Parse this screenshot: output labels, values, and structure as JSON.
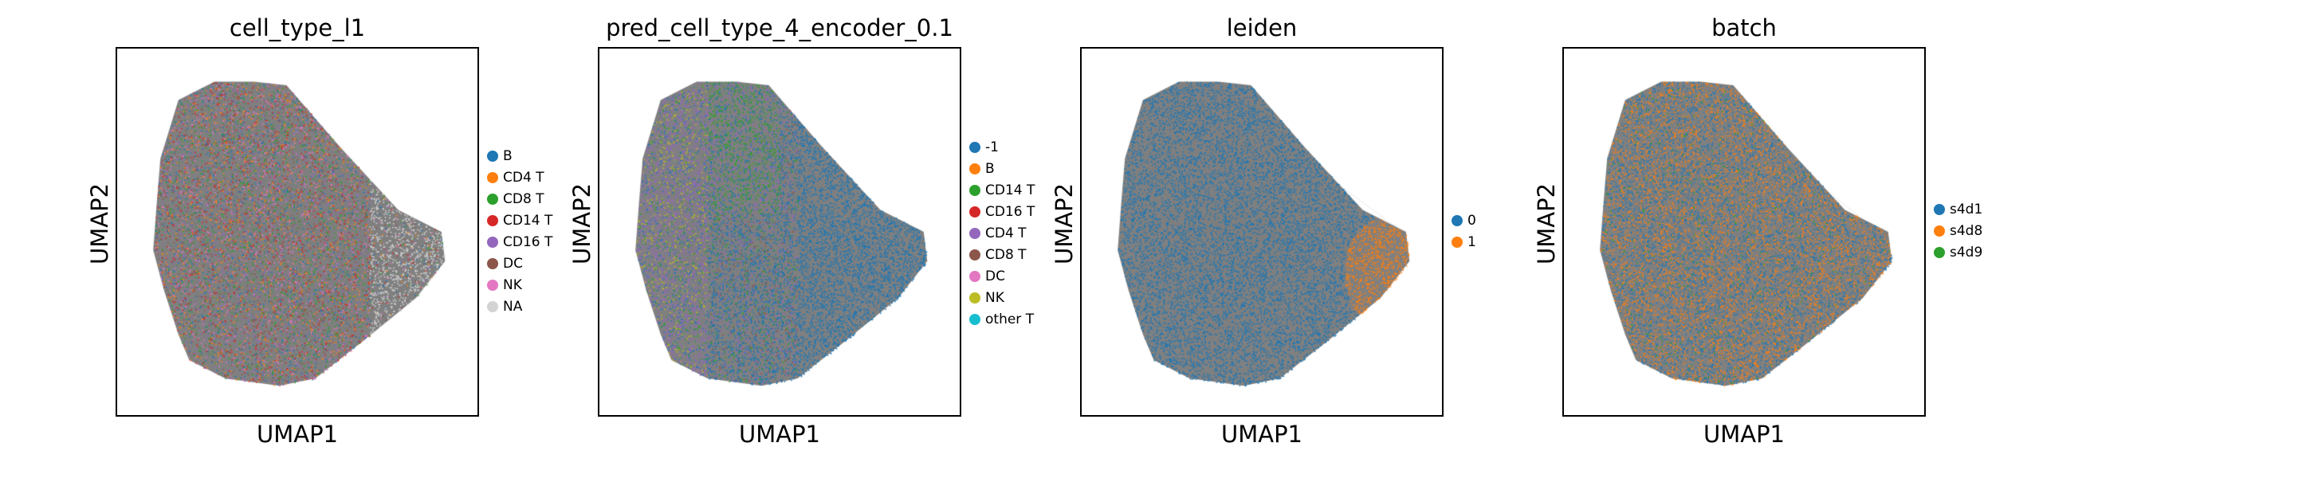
{
  "chart_data": [
    {
      "type": "scatter",
      "title": "cell_type_l1",
      "xlabel": "UMAP1",
      "ylabel": "UMAP2",
      "legend_placement": "right",
      "grid": false,
      "edges_drawn": true,
      "categories": [
        "B",
        "CD4 T",
        "CD8 T",
        "CD14 T",
        "CD16 T",
        "DC",
        "NK",
        "NA"
      ],
      "colors": [
        "#1f77b4",
        "#ff7f0e",
        "#2ca02c",
        "#d62728",
        "#9467bd",
        "#8c564b",
        "#e377c2",
        "#d3d3d3"
      ]
    },
    {
      "type": "scatter",
      "title": "pred_cell_type_4_encoder_0.1",
      "xlabel": "UMAP1",
      "ylabel": "UMAP2",
      "legend_placement": "right",
      "grid": false,
      "edges_drawn": true,
      "categories": [
        "-1",
        "B",
        "CD14 T",
        "CD16 T",
        "CD4 T",
        "CD8 T",
        "DC",
        "NK",
        "other T"
      ],
      "colors": [
        "#1f77b4",
        "#ff7f0e",
        "#2ca02c",
        "#d62728",
        "#9467bd",
        "#8c564b",
        "#e377c2",
        "#bcbd22",
        "#17becf"
      ]
    },
    {
      "type": "scatter",
      "title": "leiden",
      "xlabel": "UMAP1",
      "ylabel": "UMAP2",
      "legend_placement": "right",
      "grid": false,
      "edges_drawn": true,
      "categories": [
        "0",
        "1"
      ],
      "colors": [
        "#1f77b4",
        "#ff7f0e"
      ]
    },
    {
      "type": "scatter",
      "title": "batch",
      "xlabel": "UMAP1",
      "ylabel": "UMAP2",
      "legend_placement": "right",
      "grid": false,
      "edges_drawn": true,
      "categories": [
        "s4d1",
        "s4d8",
        "s4d9"
      ],
      "colors": [
        "#1f77b4",
        "#ff7f0e",
        "#2ca02c"
      ]
    }
  ],
  "colors": {
    "edge": "#808080",
    "frame": "#000000",
    "background": "#ffffff"
  }
}
